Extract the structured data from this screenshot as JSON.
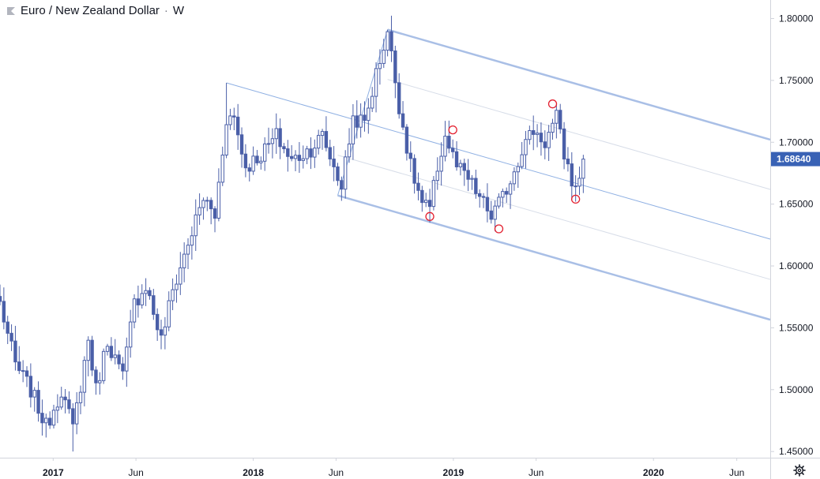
{
  "legend": {
    "symbol_name": "Euro / New Zealand Dollar",
    "separator": "·",
    "interval": "W"
  },
  "colors": {
    "candle": "#4a5fa8",
    "channel": "#a9bfe6",
    "channel_mid": "#8fb0e3",
    "channel_faint": "#d7dde8",
    "marker": "#e3202f",
    "price_badge": "#3962b5"
  },
  "icons": {
    "settings": "gear-icon",
    "logo": "tradingview-flag-icon"
  },
  "chart_data": {
    "type": "candlestick",
    "title": "Euro / New Zealand Dollar · W",
    "x_range": [
      "2016-09-26",
      "2020-08-01"
    ],
    "ylim": [
      1.445,
      1.815
    ],
    "y_ticks": [
      1.8,
      1.75,
      1.7,
      1.65,
      1.6,
      1.55,
      1.5,
      1.45
    ],
    "y_tick_labels": [
      "1.80000",
      "1.75000",
      "1.70000",
      "1.65000",
      "1.60000",
      "1.55000",
      "1.50000",
      "1.45000"
    ],
    "x_ticks": [
      {
        "date": "2017-01-01",
        "label": "2017",
        "bold": true
      },
      {
        "date": "2017-06-01",
        "label": "Jun",
        "bold": false
      },
      {
        "date": "2018-01-01",
        "label": "2018",
        "bold": true
      },
      {
        "date": "2018-06-01",
        "label": "Jun",
        "bold": false
      },
      {
        "date": "2019-01-01",
        "label": "2019",
        "bold": true
      },
      {
        "date": "2019-06-01",
        "label": "Jun",
        "bold": false
      },
      {
        "date": "2020-01-01",
        "label": "2020",
        "bold": true
      },
      {
        "date": "2020-06-01",
        "label": "Jun",
        "bold": false
      }
    ],
    "last_price": 1.6864,
    "last_price_label": "1.68640",
    "anchors": [
      [
        "2016-09-26",
        1.57
      ],
      [
        "2016-10-24",
        1.52
      ],
      [
        "2016-11-21",
        1.5
      ],
      [
        "2016-12-19",
        1.47
      ],
      [
        "2017-01-16",
        1.5
      ],
      [
        "2017-02-06",
        1.468
      ],
      [
        "2017-03-06",
        1.54
      ],
      [
        "2017-03-20",
        1.5
      ],
      [
        "2017-04-10",
        1.54
      ],
      [
        "2017-05-08",
        1.51
      ],
      [
        "2017-05-29",
        1.57
      ],
      [
        "2017-06-19",
        1.585
      ],
      [
        "2017-07-17",
        1.54
      ],
      [
        "2017-08-07",
        1.58
      ],
      [
        "2017-09-04",
        1.618
      ],
      [
        "2017-10-02",
        1.655
      ],
      [
        "2017-10-23",
        1.64
      ],
      [
        "2017-11-13",
        1.72
      ],
      [
        "2017-11-27",
        1.72
      ],
      [
        "2017-12-18",
        1.68
      ],
      [
        "2018-01-15",
        1.69
      ],
      [
        "2018-02-12",
        1.705
      ],
      [
        "2018-03-12",
        1.685
      ],
      [
        "2018-04-16",
        1.695
      ],
      [
        "2018-05-07",
        1.705
      ],
      [
        "2018-05-28",
        1.68
      ],
      [
        "2018-06-11",
        1.665
      ],
      [
        "2018-07-02",
        1.72
      ],
      [
        "2018-07-23",
        1.715
      ],
      [
        "2018-08-13",
        1.755
      ],
      [
        "2018-09-03",
        1.79
      ],
      [
        "2018-09-24",
        1.73
      ],
      [
        "2018-10-15",
        1.68
      ],
      [
        "2018-11-05",
        1.65
      ],
      [
        "2018-11-19",
        1.645
      ],
      [
        "2018-12-03",
        1.68
      ],
      [
        "2018-12-17",
        1.705
      ],
      [
        "2019-01-07",
        1.68
      ],
      [
        "2019-01-28",
        1.67
      ],
      [
        "2019-02-18",
        1.655
      ],
      [
        "2019-03-11",
        1.64
      ],
      [
        "2019-04-01",
        1.655
      ],
      [
        "2019-04-15",
        1.67
      ],
      [
        "2019-05-06",
        1.695
      ],
      [
        "2019-05-27",
        1.71
      ],
      [
        "2019-06-17",
        1.7
      ],
      [
        "2019-07-08",
        1.72
      ],
      [
        "2019-07-22",
        1.69
      ],
      [
        "2019-08-12",
        1.66
      ],
      [
        "2019-08-26",
        1.6864
      ]
    ],
    "extremes": [
      [
        "2017-02-06",
        1.45
      ],
      [
        "2017-11-13",
        1.748
      ],
      [
        "2018-09-03",
        1.791
      ],
      [
        "2018-11-19",
        1.635
      ],
      [
        "2019-03-18",
        1.628
      ],
      [
        "2019-07-08",
        1.73
      ],
      [
        "2019-08-12",
        1.652
      ]
    ],
    "pitchfork": {
      "pivot": [
        "2017-11-13",
        1.748
      ],
      "high": [
        "2018-09-03",
        1.791
      ],
      "low": [
        "2018-06-04",
        1.657
      ],
      "median_slope_per_year": -0.0465,
      "extends_to": "2020-08-01"
    },
    "circled_points": [
      [
        "2018-11-19",
        1.64
      ],
      [
        "2018-12-31",
        1.71
      ],
      [
        "2019-03-25",
        1.63
      ],
      [
        "2019-07-01",
        1.731
      ],
      [
        "2019-08-12",
        1.654
      ]
    ]
  }
}
